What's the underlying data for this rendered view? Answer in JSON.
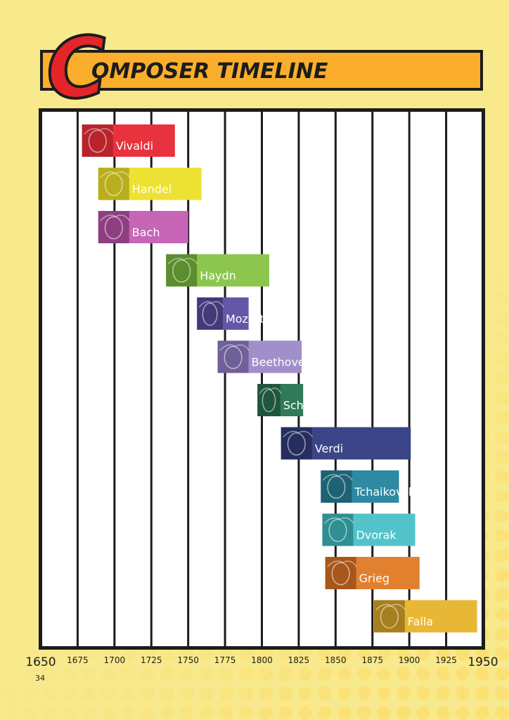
{
  "page": {
    "title_first_letter": "C",
    "title_rest": "OMPOSER TIMELINE",
    "page_number": "34"
  },
  "chart_data": {
    "type": "bar",
    "orientation": "horizontal",
    "title": "COMPOSER TIMELINE",
    "xlabel": "",
    "ylabel": "",
    "xlim": [
      1650,
      1950
    ],
    "x_ticks": [
      1650,
      1675,
      1700,
      1725,
      1750,
      1775,
      1800,
      1825,
      1850,
      1875,
      1900,
      1925,
      1950
    ],
    "grid": true,
    "legend": "none",
    "series": [
      {
        "name": "Vivaldi",
        "start": 1678,
        "end": 1741,
        "color": "#e8323d",
        "dark": "#b8232c",
        "label": "Vivaldi"
      },
      {
        "name": "Handel",
        "start": 1689,
        "end": 1759,
        "color": "#ece234",
        "dark": "#b8ae1e",
        "label": "Handel"
      },
      {
        "name": "Bach",
        "start": 1689,
        "end": 1750,
        "color": "#c765b7",
        "dark": "#8e3f82",
        "label": "Bach"
      },
      {
        "name": "Haydn",
        "start": 1735,
        "end": 1805,
        "color": "#8cc64e",
        "dark": "#5c8d2e",
        "label": "Haydn"
      },
      {
        "name": "Mozart",
        "start": 1756,
        "end": 1791,
        "color": "#6656a8",
        "dark": "#45397a",
        "label": "Mozart"
      },
      {
        "name": "Beethoven",
        "start": 1770,
        "end": 1827,
        "color": "#a08fc8",
        "dark": "#6f6098",
        "label": "Beethoven"
      },
      {
        "name": "Schubert",
        "start": 1797,
        "end": 1828,
        "color": "#2f7a58",
        "dark": "#1f563d",
        "label": "Schubert"
      },
      {
        "name": "Verdi",
        "start": 1813,
        "end": 1901,
        "color": "#3a4487",
        "dark": "#262e60",
        "label": "Verdi"
      },
      {
        "name": "Tchaikovsky",
        "start": 1840,
        "end": 1893,
        "color": "#2d8aa2",
        "dark": "#1e6275",
        "label": "Tchaikovsky"
      },
      {
        "name": "Dvorak",
        "start": 1841,
        "end": 1904,
        "color": "#52c4c9",
        "dark": "#2f8f93",
        "label": "Dvorak"
      },
      {
        "name": "Grieg",
        "start": 1843,
        "end": 1907,
        "color": "#e1812f",
        "dark": "#a8571b",
        "label": "Grieg"
      },
      {
        "name": "Falla",
        "start": 1876,
        "end": 1946,
        "color": "#e8b736",
        "dark": "#a87f1e",
        "label": "Falla"
      }
    ]
  }
}
